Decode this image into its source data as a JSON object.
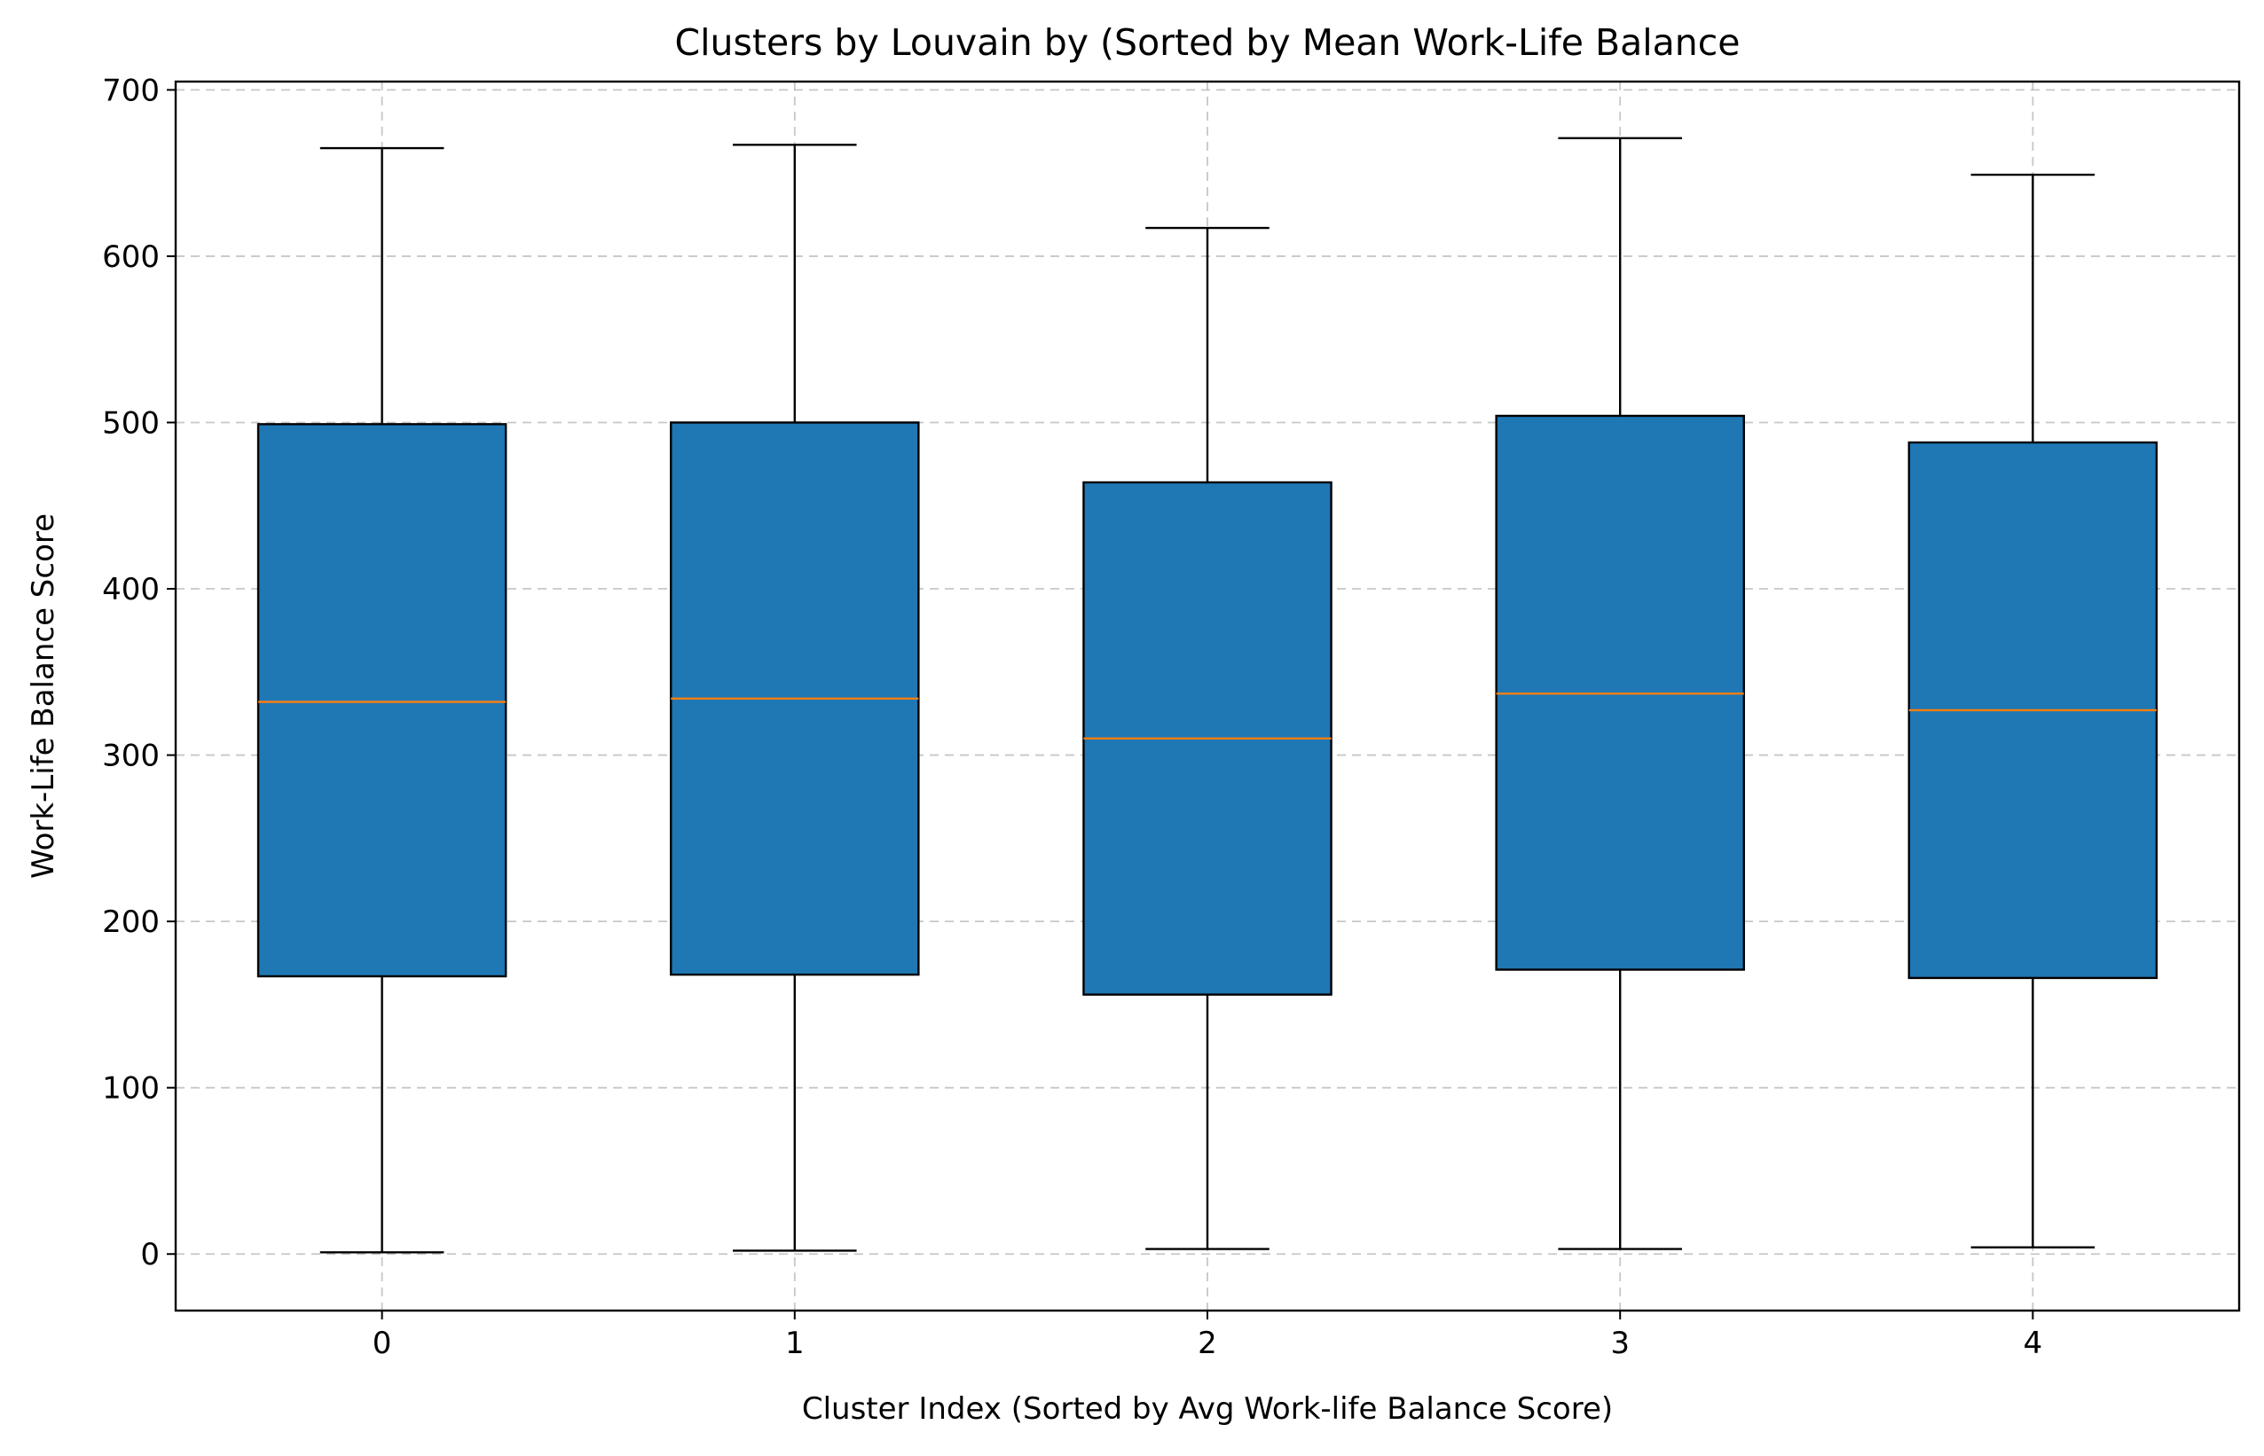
{
  "chart_data": {
    "type": "boxplot",
    "title": "Clusters by Louvain by (Sorted by Mean Work-Life Balance",
    "xlabel": "Cluster Index (Sorted by Avg Work-life Balance Score)",
    "ylabel": "Work-Life Balance Score",
    "categories": [
      "0",
      "1",
      "2",
      "3",
      "4"
    ],
    "boxes": [
      {
        "category": "0",
        "whisker_low": 1,
        "q1": 167,
        "median": 332,
        "q3": 499,
        "whisker_high": 665
      },
      {
        "category": "1",
        "whisker_low": 2,
        "q1": 168,
        "median": 334,
        "q3": 500,
        "whisker_high": 667
      },
      {
        "category": "2",
        "whisker_low": 3,
        "q1": 156,
        "median": 310,
        "q3": 464,
        "whisker_high": 617
      },
      {
        "category": "3",
        "whisker_low": 3,
        "q1": 171,
        "median": 337,
        "q3": 504,
        "whisker_high": 671
      },
      {
        "category": "4",
        "whisker_low": 4,
        "q1": 166,
        "median": 327,
        "q3": 488,
        "whisker_high": 649
      }
    ],
    "ylim": [
      -34,
      705
    ],
    "xlim": [
      -0.5,
      4.5
    ],
    "yticks": [
      0,
      100,
      200,
      300,
      400,
      500,
      600,
      700
    ],
    "ytick_labels": [
      "0",
      "100",
      "200",
      "300",
      "400",
      "500",
      "600",
      "700"
    ],
    "grid": true,
    "colors": {
      "box_fill": "#1f77b4",
      "box_edge": "#000000",
      "median": "#ff7f0e",
      "grid": "#b0b0b0"
    }
  }
}
